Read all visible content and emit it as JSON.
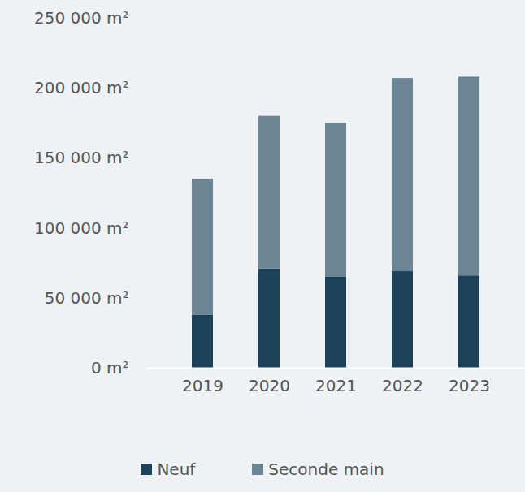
{
  "chart_data": {
    "type": "bar",
    "stacked": true,
    "categories": [
      "2019",
      "2020",
      "2021",
      "2022",
      "2023"
    ],
    "series": [
      {
        "name": "Neuf",
        "color": "#1c4259",
        "values": [
          38000,
          71000,
          65000,
          69000,
          66000
        ]
      },
      {
        "name": "Seconde main",
        "color": "#6b8594",
        "values": [
          97000,
          109000,
          110000,
          138000,
          142000
        ]
      }
    ],
    "ylim": [
      0,
      250000
    ],
    "yticks": [
      {
        "value": 0,
        "label": "0 m²"
      },
      {
        "value": 50000,
        "label": "50 000 m²"
      },
      {
        "value": 100000,
        "label": "100 000 m²"
      },
      {
        "value": 150000,
        "label": "150 000 m²"
      },
      {
        "value": 200000,
        "label": "200 000 m²"
      },
      {
        "value": 250000,
        "label": "250 000 m²"
      }
    ],
    "grid": false,
    "legend": "bottom"
  }
}
